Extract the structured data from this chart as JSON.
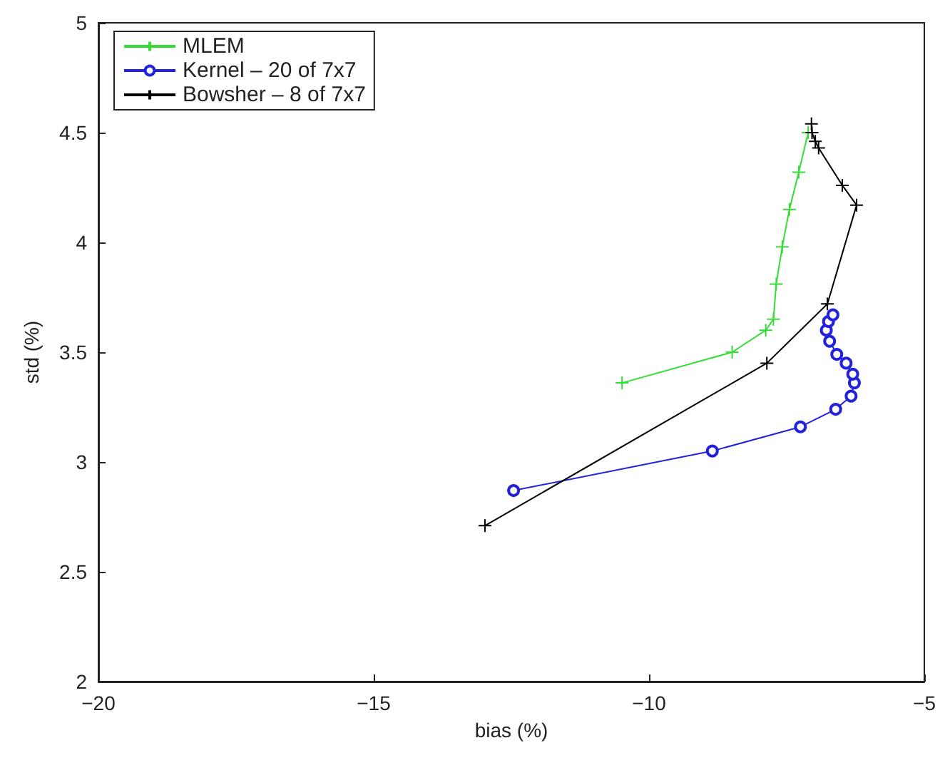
{
  "chart_data": {
    "type": "line",
    "xlabel": "bias (%)",
    "ylabel": "std (%)",
    "xlim": [
      -20,
      -5
    ],
    "xticks": [
      {
        "value": -20,
        "label": "−20"
      },
      {
        "value": -15,
        "label": "−15"
      },
      {
        "value": -10,
        "label": "−10"
      },
      {
        "value": -5,
        "label": "−5"
      }
    ],
    "ylim": [
      2,
      5
    ],
    "yticks": [
      2,
      2.5,
      3,
      3.5,
      4,
      4.5,
      5
    ],
    "grid": false,
    "legend": "top left",
    "series": [
      {
        "name": "MLEM",
        "color": "#33dd33",
        "marker": "cross",
        "x": [
          -10.49,
          -8.49,
          -7.88,
          -7.74,
          -7.69,
          -7.58,
          -7.45,
          -7.28,
          -7.11
        ],
        "values": [
          3.36,
          3.5,
          3.6,
          3.65,
          3.81,
          3.98,
          4.15,
          4.32,
          4.5
        ]
      },
      {
        "name": "Kernel – 20 of 7x7",
        "color": "#2222dd",
        "marker": "circle",
        "x": [
          -12.46,
          -8.85,
          -7.25,
          -6.61,
          -6.33,
          -6.27,
          -6.3,
          -6.42,
          -6.59,
          -6.72,
          -6.78,
          -6.74,
          -6.66
        ],
        "values": [
          2.87,
          3.05,
          3.16,
          3.24,
          3.3,
          3.36,
          3.4,
          3.45,
          3.49,
          3.55,
          3.6,
          3.64,
          3.67
        ]
      },
      {
        "name": "Bowsher – 8 of 7x7",
        "color": "#000000",
        "marker": "cross",
        "x": [
          -12.98,
          -7.86,
          -6.76,
          -6.23,
          -6.49,
          -6.92,
          -6.98,
          -7.04,
          -7.05
        ],
        "values": [
          2.71,
          3.45,
          3.72,
          4.17,
          4.26,
          4.43,
          4.46,
          4.5,
          4.54
        ]
      }
    ]
  }
}
